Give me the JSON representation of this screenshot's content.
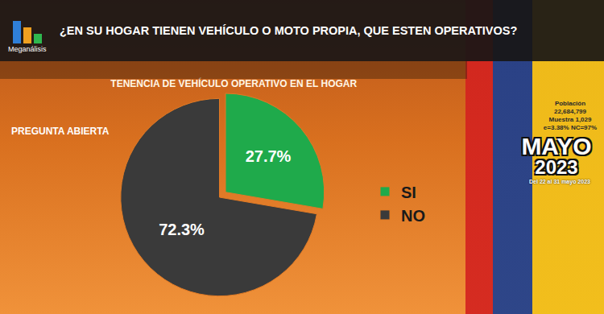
{
  "header": {
    "logo": "Meganálisis",
    "question": "¿EN SU HOGAR TIENEN VEHÍCULO O MOTO PROPIA, QUE ESTEN OPERATIVOS?",
    "label": "PREGUNTA ABIERTA"
  },
  "sidebar": {
    "lines": [
      "Población",
      "22,684,799",
      "Muestra 1,029",
      "e=3.38%  NC=97%"
    ],
    "month": "MAYO",
    "year": "2023",
    "dates": "Del 22 al 31 mayo 2023"
  },
  "chart_data": {
    "type": "pie",
    "title": "TENENCIA DE VEHÍCULO OPERATIVO EN EL HOGAR",
    "categories": [
      "SI",
      "NO"
    ],
    "values": [
      27.7,
      72.3
    ],
    "value_labels": [
      "27.7%",
      "72.3%"
    ],
    "colors": [
      "#1faa4b",
      "#3a3a3a"
    ],
    "data_labels": true,
    "legend": "right"
  }
}
